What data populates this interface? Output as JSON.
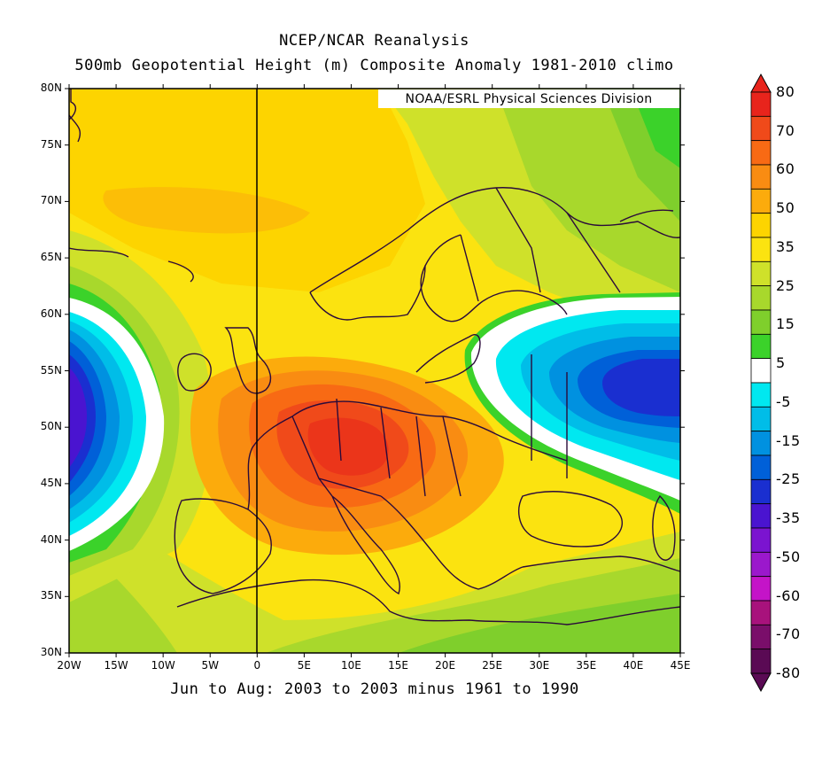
{
  "titles": {
    "line1": "NCEP/NCAR Reanalysis",
    "line2": "500mb Geopotential Height (m) Composite Anomaly 1981-2010 climo",
    "bottom": "Jun to Aug: 2003 to 2003 minus 1961 to 1990",
    "credit": "NOAA/ESRL Physical Sciences Division"
  },
  "axes": {
    "lat_labels": [
      "80N",
      "75N",
      "70N",
      "65N",
      "60N",
      "55N",
      "50N",
      "45N",
      "40N",
      "35N",
      "30N"
    ],
    "lon_labels": [
      "20W",
      "15W",
      "10W",
      "5W",
      "0",
      "5E",
      "10E",
      "15E",
      "20E",
      "25E",
      "30E",
      "35E",
      "40E",
      "45E"
    ],
    "lat_range": [
      30,
      80
    ],
    "lon_range": [
      -20,
      45
    ]
  },
  "colorbar": {
    "labels": [
      "80",
      "70",
      "60",
      "50",
      "35",
      "25",
      "15",
      "5",
      "-5",
      "-15",
      "-25",
      "-35",
      "-50",
      "-60",
      "-70",
      "-80"
    ],
    "colors": [
      "#e8241c",
      "#f04a1a",
      "#f86a14",
      "#f98c12",
      "#fcab0c",
      "#fdd400",
      "#fbe310",
      "#cfe12a",
      "#a8d82c",
      "#7fcf2c",
      "#3bd22a",
      "#ffffff",
      "#00e8f0",
      "#00bde8",
      "#0091e0",
      "#0060d8",
      "#1a2fd0",
      "#4a14d0",
      "#7b14d0",
      "#9b18cc",
      "#c414c8",
      "#a8127c",
      "#7a0e6a",
      "#5a0a54"
    ],
    "top_arrow_color": "#e8241c",
    "bottom_arrow_color": "#5a0a54"
  },
  "map": {
    "background_color": "#fbe310",
    "high_center_color": "#e8412a",
    "low_center_color": "#1a2fd0"
  }
}
